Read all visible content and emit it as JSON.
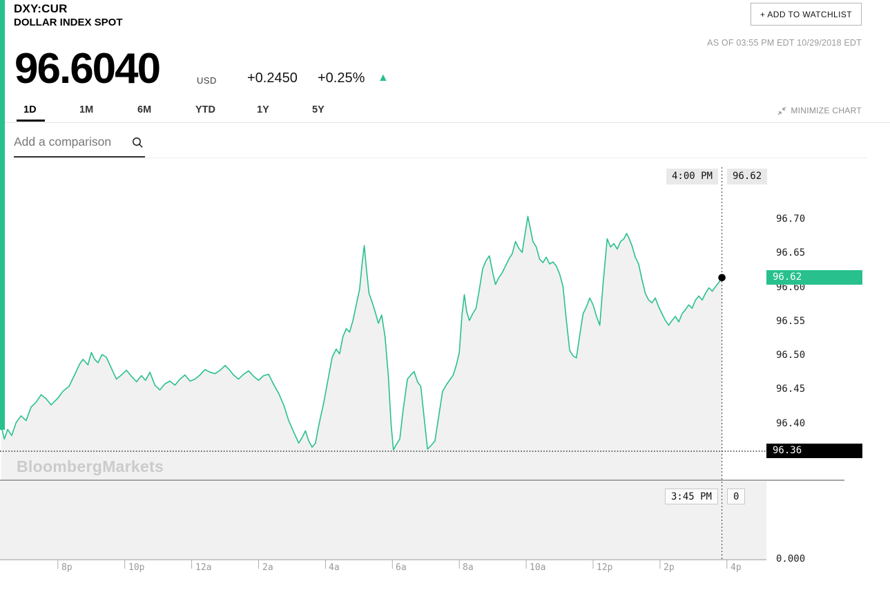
{
  "header": {
    "ticker": "DXY:CUR",
    "name": "DOLLAR INDEX SPOT",
    "watchlist_button": "+ ADD TO WATCHLIST",
    "as_of": "AS OF 03:55 PM EDT 10/29/2018 EDT"
  },
  "quote": {
    "price": "96.6040",
    "currency": "USD",
    "change": "+0.2450",
    "change_pct": "+0.25%",
    "direction_icon": "▲"
  },
  "tabs": [
    {
      "label": "1D",
      "active": true
    },
    {
      "label": "1M",
      "active": false
    },
    {
      "label": "6M",
      "active": false
    },
    {
      "label": "YTD",
      "active": false
    },
    {
      "label": "1Y",
      "active": false
    },
    {
      "label": "5Y",
      "active": false
    }
  ],
  "minimize_chart": "MINIMIZE CHART",
  "comparison": {
    "placeholder": "Add a comparison"
  },
  "watermark": "BloombergMarkets",
  "colors": {
    "accent": "#28c08d",
    "area_fill": "#f1f1f1",
    "panel_fill": "#f1f1f1",
    "badge_black": "#000000",
    "chip_bg": "#e9e9e9"
  },
  "chart_data": {
    "type": "area",
    "title": "DOLLAR INDEX SPOT (DXY:CUR) — 1D intraday",
    "legend": "none",
    "grid": "off",
    "x_domain": [
      18.27,
      41.18
    ],
    "x_ticks": [
      {
        "h": 20,
        "label": "8p"
      },
      {
        "h": 22,
        "label": "10p"
      },
      {
        "h": 24,
        "label": "12a"
      },
      {
        "h": 26,
        "label": "2a"
      },
      {
        "h": 28,
        "label": "4a"
      },
      {
        "h": 30,
        "label": "6a"
      },
      {
        "h": 32,
        "label": "8a"
      },
      {
        "h": 34,
        "label": "10a"
      },
      {
        "h": 36,
        "label": "12p"
      },
      {
        "h": 38,
        "label": "2p"
      },
      {
        "h": 40,
        "label": "4p"
      }
    ],
    "ylim_main": [
      96.32,
      96.79
    ],
    "y_ticks": [
      {
        "v": 96.7,
        "label": "96.70"
      },
      {
        "v": 96.65,
        "label": "96.65"
      },
      {
        "v": 96.6,
        "label": "96.60"
      },
      {
        "v": 96.55,
        "label": "96.55"
      },
      {
        "v": 96.5,
        "label": "96.50"
      },
      {
        "v": 96.45,
        "label": "96.45"
      },
      {
        "v": 96.4,
        "label": "96.40"
      }
    ],
    "prev_close": {
      "v": 96.36,
      "label": "96.36"
    },
    "last": {
      "v": 96.615,
      "label": "96.62"
    },
    "crosshair": {
      "h": 39.85,
      "time_label": "4:00 PM",
      "price_label": "96.62",
      "lower_time_label": "3:45 PM",
      "lower_value_label": "0"
    },
    "volume_axis_label": "0.000",
    "series": [
      {
        "name": "DXY:CUR",
        "points": [
          [
            18.3,
            96.398
          ],
          [
            18.4,
            96.378
          ],
          [
            18.5,
            96.392
          ],
          [
            18.62,
            96.383
          ],
          [
            18.75,
            96.402
          ],
          [
            18.9,
            96.412
          ],
          [
            19.05,
            96.405
          ],
          [
            19.2,
            96.425
          ],
          [
            19.35,
            96.432
          ],
          [
            19.5,
            96.443
          ],
          [
            19.65,
            96.437
          ],
          [
            19.8,
            96.428
          ],
          [
            20.0,
            96.438
          ],
          [
            20.15,
            96.448
          ],
          [
            20.33,
            96.455
          ],
          [
            20.5,
            96.472
          ],
          [
            20.65,
            96.488
          ],
          [
            20.75,
            96.495
          ],
          [
            20.9,
            96.487
          ],
          [
            21.0,
            96.505
          ],
          [
            21.1,
            96.495
          ],
          [
            21.2,
            96.49
          ],
          [
            21.32,
            96.502
          ],
          [
            21.45,
            96.498
          ],
          [
            21.6,
            96.482
          ],
          [
            21.75,
            96.466
          ],
          [
            21.9,
            96.472
          ],
          [
            22.05,
            96.479
          ],
          [
            22.2,
            96.47
          ],
          [
            22.35,
            96.462
          ],
          [
            22.5,
            96.471
          ],
          [
            22.62,
            96.464
          ],
          [
            22.75,
            96.476
          ],
          [
            22.9,
            96.457
          ],
          [
            23.05,
            96.45
          ],
          [
            23.2,
            96.459
          ],
          [
            23.35,
            96.463
          ],
          [
            23.5,
            96.457
          ],
          [
            23.65,
            96.466
          ],
          [
            23.8,
            96.472
          ],
          [
            23.95,
            96.463
          ],
          [
            24.1,
            96.466
          ],
          [
            24.25,
            96.472
          ],
          [
            24.4,
            96.48
          ],
          [
            24.55,
            96.476
          ],
          [
            24.7,
            96.474
          ],
          [
            24.85,
            96.479
          ],
          [
            25.0,
            96.486
          ],
          [
            25.12,
            96.48
          ],
          [
            25.25,
            96.472
          ],
          [
            25.4,
            96.466
          ],
          [
            25.55,
            96.473
          ],
          [
            25.7,
            96.478
          ],
          [
            25.85,
            96.47
          ],
          [
            26.0,
            96.464
          ],
          [
            26.15,
            96.471
          ],
          [
            26.3,
            96.473
          ],
          [
            26.45,
            96.458
          ],
          [
            26.6,
            96.445
          ],
          [
            26.75,
            96.428
          ],
          [
            26.9,
            96.405
          ],
          [
            27.05,
            96.388
          ],
          [
            27.2,
            96.372
          ],
          [
            27.3,
            96.38
          ],
          [
            27.4,
            96.39
          ],
          [
            27.5,
            96.375
          ],
          [
            27.6,
            96.366
          ],
          [
            27.7,
            96.372
          ],
          [
            27.8,
            96.398
          ],
          [
            27.95,
            96.432
          ],
          [
            28.1,
            96.472
          ],
          [
            28.2,
            96.498
          ],
          [
            28.32,
            96.51
          ],
          [
            28.42,
            96.503
          ],
          [
            28.52,
            96.528
          ],
          [
            28.62,
            96.54
          ],
          [
            28.72,
            96.535
          ],
          [
            28.82,
            96.552
          ],
          [
            28.92,
            96.575
          ],
          [
            29.02,
            96.598
          ],
          [
            29.1,
            96.638
          ],
          [
            29.16,
            96.662
          ],
          [
            29.22,
            96.63
          ],
          [
            29.3,
            96.592
          ],
          [
            29.4,
            96.578
          ],
          [
            29.5,
            96.562
          ],
          [
            29.58,
            96.548
          ],
          [
            29.68,
            96.56
          ],
          [
            29.78,
            96.528
          ],
          [
            29.88,
            96.47
          ],
          [
            29.96,
            96.4
          ],
          [
            30.03,
            96.362
          ],
          [
            30.12,
            96.37
          ],
          [
            30.22,
            96.378
          ],
          [
            30.32,
            96.42
          ],
          [
            30.45,
            96.466
          ],
          [
            30.55,
            96.472
          ],
          [
            30.65,
            96.477
          ],
          [
            30.75,
            96.462
          ],
          [
            30.85,
            96.455
          ],
          [
            30.95,
            96.408
          ],
          [
            31.05,
            96.363
          ],
          [
            31.15,
            96.368
          ],
          [
            31.27,
            96.375
          ],
          [
            31.38,
            96.41
          ],
          [
            31.5,
            96.448
          ],
          [
            31.62,
            96.458
          ],
          [
            31.72,
            96.465
          ],
          [
            31.82,
            96.472
          ],
          [
            31.92,
            96.488
          ],
          [
            32.0,
            96.505
          ],
          [
            32.08,
            96.56
          ],
          [
            32.15,
            96.59
          ],
          [
            32.22,
            96.565
          ],
          [
            32.3,
            96.552
          ],
          [
            32.4,
            96.562
          ],
          [
            32.5,
            96.57
          ],
          [
            32.6,
            96.598
          ],
          [
            32.7,
            96.628
          ],
          [
            32.8,
            96.64
          ],
          [
            32.9,
            96.647
          ],
          [
            33.0,
            96.622
          ],
          [
            33.08,
            96.605
          ],
          [
            33.18,
            96.615
          ],
          [
            33.28,
            96.622
          ],
          [
            33.38,
            96.632
          ],
          [
            33.48,
            96.642
          ],
          [
            33.58,
            96.65
          ],
          [
            33.68,
            96.668
          ],
          [
            33.78,
            96.658
          ],
          [
            33.88,
            96.652
          ],
          [
            33.96,
            96.678
          ],
          [
            34.05,
            96.705
          ],
          [
            34.12,
            96.688
          ],
          [
            34.2,
            96.668
          ],
          [
            34.3,
            96.66
          ],
          [
            34.4,
            96.642
          ],
          [
            34.5,
            96.637
          ],
          [
            34.6,
            96.645
          ],
          [
            34.7,
            96.635
          ],
          [
            34.8,
            96.638
          ],
          [
            34.9,
            96.632
          ],
          [
            35.0,
            96.62
          ],
          [
            35.1,
            96.602
          ],
          [
            35.2,
            96.552
          ],
          [
            35.3,
            96.508
          ],
          [
            35.4,
            96.5
          ],
          [
            35.5,
            96.497
          ],
          [
            35.6,
            96.53
          ],
          [
            35.7,
            96.562
          ],
          [
            35.8,
            96.572
          ],
          [
            35.9,
            96.585
          ],
          [
            36.0,
            96.575
          ],
          [
            36.1,
            96.558
          ],
          [
            36.2,
            96.545
          ],
          [
            36.3,
            96.608
          ],
          [
            36.42,
            96.672
          ],
          [
            36.52,
            96.66
          ],
          [
            36.62,
            96.665
          ],
          [
            36.72,
            96.657
          ],
          [
            36.82,
            96.668
          ],
          [
            36.92,
            96.672
          ],
          [
            37.0,
            96.68
          ],
          [
            37.08,
            96.672
          ],
          [
            37.16,
            96.662
          ],
          [
            37.26,
            96.645
          ],
          [
            37.36,
            96.635
          ],
          [
            37.46,
            96.612
          ],
          [
            37.56,
            96.592
          ],
          [
            37.66,
            96.582
          ],
          [
            37.76,
            96.578
          ],
          [
            37.86,
            96.585
          ],
          [
            37.96,
            96.572
          ],
          [
            38.06,
            96.562
          ],
          [
            38.16,
            96.552
          ],
          [
            38.26,
            96.545
          ],
          [
            38.36,
            96.552
          ],
          [
            38.46,
            96.558
          ],
          [
            38.56,
            96.55
          ],
          [
            38.66,
            96.562
          ],
          [
            38.76,
            96.568
          ],
          [
            38.86,
            96.575
          ],
          [
            38.96,
            96.57
          ],
          [
            39.06,
            96.582
          ],
          [
            39.16,
            96.588
          ],
          [
            39.26,
            96.582
          ],
          [
            39.36,
            96.592
          ],
          [
            39.46,
            96.6
          ],
          [
            39.56,
            96.595
          ],
          [
            39.66,
            96.602
          ],
          [
            39.76,
            96.608
          ],
          [
            39.85,
            96.615
          ]
        ]
      }
    ]
  }
}
